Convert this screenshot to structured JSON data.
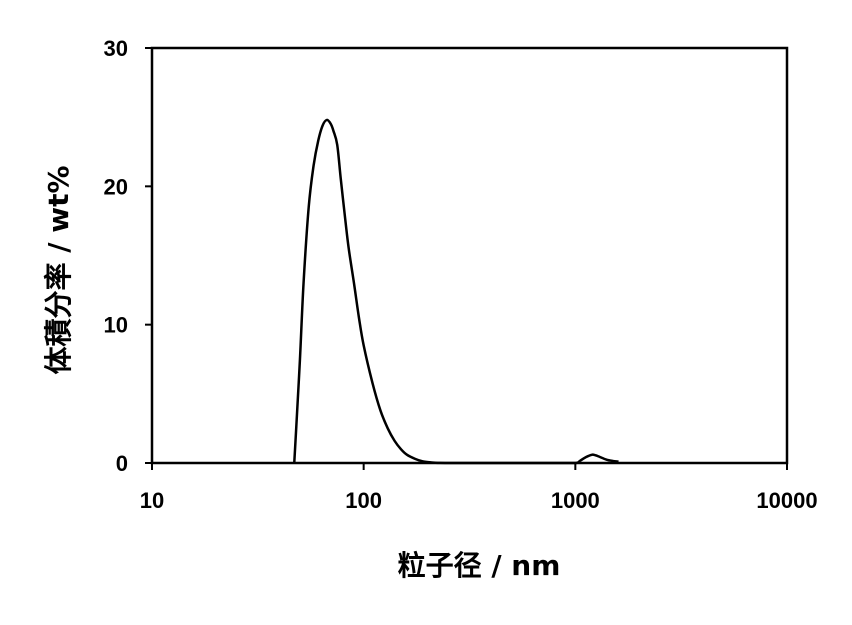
{
  "chart_data": {
    "type": "line",
    "title": "",
    "xlabel": "粒子径 / nm",
    "ylabel": "体積分率 / wt%",
    "xscale": "log",
    "xlim": [
      10,
      10000
    ],
    "ylim": [
      0,
      30
    ],
    "xticks": [
      "10",
      "100",
      "1000",
      "10000"
    ],
    "xtick_values": [
      10,
      100,
      1000,
      10000
    ],
    "yticks": [
      "0",
      "10",
      "20",
      "30"
    ],
    "ytick_values": [
      0,
      10,
      20,
      30
    ],
    "grid": false,
    "legend": "none",
    "line_color": "#000000",
    "series": [
      {
        "x": [
          47,
          48,
          50,
          52,
          55,
          58,
          61,
          64,
          67,
          70,
          72,
          75,
          78,
          82,
          85,
          90,
          95,
          100,
          110,
          120,
          130,
          140,
          150,
          160,
          175,
          190,
          210,
          230,
          260,
          300,
          400,
          600,
          800,
          1000,
          1050,
          1100,
          1150,
          1200,
          1250,
          1300,
          1400,
          1500,
          1600
        ],
        "y": [
          0,
          2.5,
          7.5,
          13,
          18.5,
          21.5,
          23.3,
          24.4,
          24.8,
          24.5,
          24.0,
          23.0,
          20.5,
          17.5,
          15.5,
          13.0,
          10.5,
          8.5,
          5.8,
          3.8,
          2.5,
          1.6,
          1.0,
          0.6,
          0.3,
          0.12,
          0.04,
          0.01,
          0,
          0,
          0,
          0,
          0,
          0,
          0.15,
          0.35,
          0.5,
          0.6,
          0.55,
          0.45,
          0.25,
          0.15,
          0.1
        ]
      }
    ]
  }
}
